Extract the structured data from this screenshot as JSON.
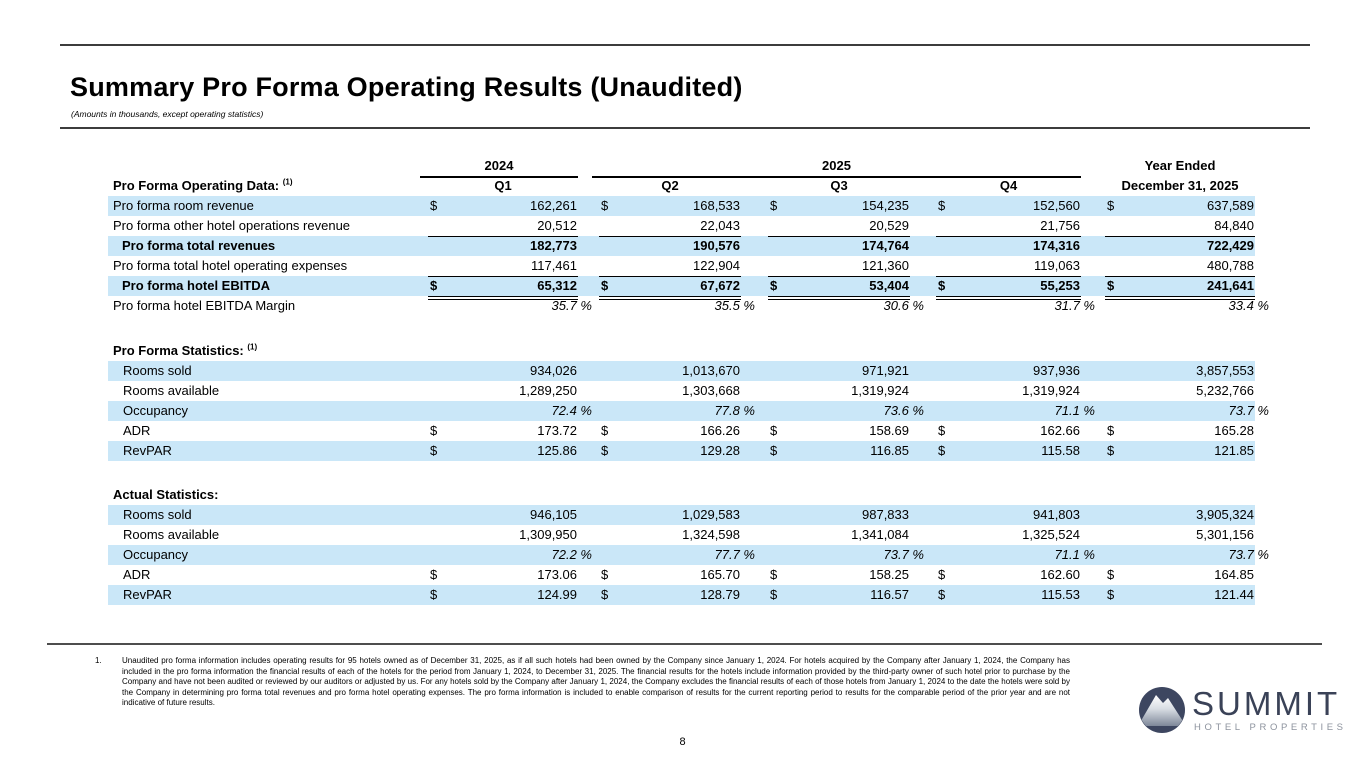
{
  "header": {
    "title": "Summary Pro Forma Operating Results (Unaudited)",
    "subtitle": "(Amounts in thousands, except operating statistics)"
  },
  "table": {
    "currency": "$",
    "year_2024": "2024",
    "year_2025": "2025",
    "year_ended_line1": "Year Ended",
    "year_ended_line2": "December 31, 2025",
    "quarters": [
      "Q1",
      "Q2",
      "Q3",
      "Q4"
    ],
    "operating": {
      "heading": "Pro Forma Operating Data:",
      "heading_sup": "(1)",
      "rows": [
        {
          "label": "Pro forma room revenue",
          "dollar": true,
          "bg": "blue",
          "values": [
            "162,261",
            "168,533",
            "154,235",
            "152,560",
            "637,589"
          ]
        },
        {
          "label": "Pro forma other hotel operations revenue",
          "bg": "white",
          "line_below": true,
          "values": [
            "20,512",
            "22,043",
            "20,529",
            "21,756",
            "84,840"
          ]
        },
        {
          "label": "Pro forma total revenues",
          "bold": true,
          "indent": true,
          "bg": "blue",
          "values": [
            "182,773",
            "190,576",
            "174,764",
            "174,316",
            "722,429"
          ]
        },
        {
          "label": "Pro forma total hotel operating expenses",
          "bg": "white",
          "line_below": true,
          "values": [
            "117,461",
            "122,904",
            "121,360",
            "119,063",
            "480,788"
          ]
        },
        {
          "label": "Pro forma hotel EBITDA",
          "bold": true,
          "indent": true,
          "dollar": true,
          "bg": "blue",
          "double_below": true,
          "values": [
            "65,312",
            "67,672",
            "53,404",
            "55,253",
            "241,641"
          ]
        },
        {
          "label": "Pro forma hotel EBITDA Margin",
          "bg": "white",
          "italic_values": true,
          "values": [
            "35.7 %",
            "35.5 %",
            "30.6 %",
            "31.7 %",
            "33.4 %"
          ]
        }
      ]
    },
    "proforma_stats": {
      "heading": "Pro Forma Statistics:",
      "heading_sup": "(1)",
      "rows": [
        {
          "label": "Rooms sold",
          "bg": "blue",
          "values": [
            "934,026",
            "1,013,670",
            "971,921",
            "937,936",
            "3,857,553"
          ]
        },
        {
          "label": "Rooms available",
          "bg": "white",
          "values": [
            "1,289,250",
            "1,303,668",
            "1,319,924",
            "1,319,924",
            "5,232,766"
          ]
        },
        {
          "label": "Occupancy",
          "bg": "blue",
          "italic_values": true,
          "values": [
            "72.4 %",
            "77.8 %",
            "73.6 %",
            "71.1 %",
            "73.7 %"
          ]
        },
        {
          "label": "ADR",
          "bg": "white",
          "dollar": true,
          "values": [
            "173.72",
            "166.26",
            "158.69",
            "162.66",
            "165.28"
          ]
        },
        {
          "label": "RevPAR",
          "bg": "blue",
          "dollar": true,
          "values": [
            "125.86",
            "129.28",
            "116.85",
            "115.58",
            "121.85"
          ]
        }
      ]
    },
    "actual_stats": {
      "heading": "Actual Statistics:",
      "heading_sup": "",
      "rows": [
        {
          "label": "Rooms sold",
          "bg": "blue",
          "values": [
            "946,105",
            "1,029,583",
            "987,833",
            "941,803",
            "3,905,324"
          ]
        },
        {
          "label": "Rooms available",
          "bg": "white",
          "values": [
            "1,309,950",
            "1,324,598",
            "1,341,084",
            "1,325,524",
            "5,301,156"
          ]
        },
        {
          "label": "Occupancy",
          "bg": "blue",
          "italic_values": true,
          "values": [
            "72.2 %",
            "77.7 %",
            "73.7 %",
            "71.1 %",
            "73.7 %"
          ]
        },
        {
          "label": "ADR",
          "bg": "white",
          "dollar": true,
          "values": [
            "173.06",
            "165.70",
            "158.25",
            "162.60",
            "164.85"
          ]
        },
        {
          "label": "RevPAR",
          "bg": "blue",
          "dollar": true,
          "values": [
            "124.99",
            "128.79",
            "116.57",
            "115.53",
            "121.44"
          ]
        }
      ]
    }
  },
  "footnote": {
    "number": "1.",
    "text": "Unaudited pro forma information includes operating results for 95 hotels owned as of December 31, 2025, as if all such hotels had been owned by the Company since January 1, 2024. For hotels acquired by the Company after January 1, 2024, the Company has included in the pro forma information the financial results of each of the hotels for the period from January 1, 2024, to December 31, 2025. The financial results for the hotels include information provided by the third-party owner of such hotel prior to purchase by the Company and have not been audited or reviewed by our auditors or adjusted by us. For any hotels sold by the Company after January 1, 2024, the Company excludes the financial results of each of those hotels from January 1, 2024 to the date the hotels were sold by the Company in determining pro forma total revenues and pro forma hotel operating expenses. The pro forma information is included to enable comparison of results for the current reporting period to results for the comparable period of the prior year and are not indicative of future results."
  },
  "page_number": "8",
  "logo": {
    "name": "SUMMIT",
    "tagline": "HOTEL PROPERTIES",
    "navy": "#3d4660",
    "gray": "#8d939e"
  }
}
